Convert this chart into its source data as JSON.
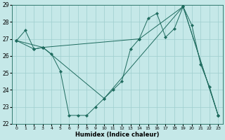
{
  "xlabel": "Humidex (Indice chaleur)",
  "ylabel": "",
  "background_color": "#c5e8e8",
  "grid_color": "#9ecece",
  "line_color": "#1e6b5e",
  "xlim": [
    -0.5,
    23.5
  ],
  "ylim": [
    22,
    29
  ],
  "yticks": [
    22,
    23,
    24,
    25,
    26,
    27,
    28,
    29
  ],
  "xticks": [
    0,
    1,
    2,
    3,
    4,
    5,
    6,
    7,
    8,
    9,
    10,
    11,
    12,
    13,
    14,
    15,
    16,
    17,
    18,
    19,
    20,
    21,
    22,
    23
  ],
  "series1_x": [
    0,
    1,
    2,
    3,
    4,
    5,
    6,
    7,
    8,
    9,
    10,
    11,
    12,
    13,
    14,
    15,
    16,
    17,
    18,
    19,
    20,
    21,
    22,
    23
  ],
  "series1_y": [
    26.9,
    27.5,
    26.4,
    26.5,
    26.1,
    25.1,
    22.5,
    22.5,
    22.5,
    23.0,
    23.5,
    24.0,
    24.5,
    26.4,
    27.0,
    28.2,
    28.5,
    27.1,
    27.6,
    28.9,
    27.8,
    25.5,
    24.2,
    22.5
  ],
  "series2_x": [
    0,
    2,
    3,
    14,
    19,
    23
  ],
  "series2_y": [
    26.9,
    26.4,
    26.5,
    27.0,
    28.9,
    22.5
  ],
  "series3_x": [
    0,
    3,
    10,
    19,
    23
  ],
  "series3_y": [
    26.9,
    26.5,
    23.5,
    28.9,
    22.5
  ],
  "figsize": [
    3.2,
    2.0
  ],
  "dpi": 100
}
